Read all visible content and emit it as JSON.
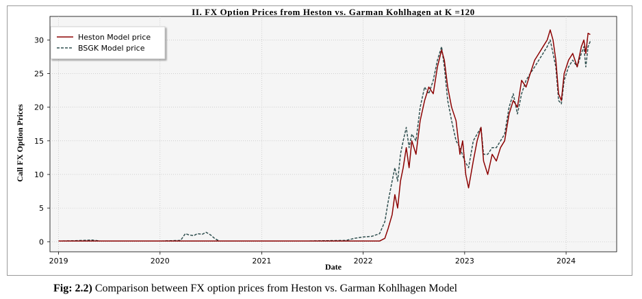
{
  "colors": {
    "heston": "#8b0000",
    "bsgk": "#2f4f4f",
    "plot_background": "#f5f5f5",
    "grid": "#b8b8b8"
  },
  "chart_data": {
    "type": "line",
    "title": "II. FX Option Prices from Heston vs. Garman Kohlhagen at K =120",
    "xlabel": "Date",
    "ylabel": "Call FX Option Prices",
    "xlim": [
      "2018-12-01",
      "2024-07-01"
    ],
    "ylim": [
      -1.5,
      33.5
    ],
    "x_ticks": [
      "2019",
      "2020",
      "2021",
      "2022",
      "2023",
      "2024"
    ],
    "y_ticks": [
      0,
      5,
      10,
      15,
      20,
      25,
      30
    ],
    "grid": true,
    "legend_position": "upper-left",
    "series": [
      {
        "name": "Heston Model price",
        "style": "solid",
        "points": [
          [
            "2019-01-01",
            0.1
          ],
          [
            "2019-06-01",
            0.1
          ],
          [
            "2020-01-01",
            0.1
          ],
          [
            "2020-06-01",
            0.1
          ],
          [
            "2021-01-01",
            0.1
          ],
          [
            "2021-06-01",
            0.1
          ],
          [
            "2022-01-01",
            0.1
          ],
          [
            "2022-03-01",
            0.1
          ],
          [
            "2022-03-20",
            0.5
          ],
          [
            "2022-04-01",
            2
          ],
          [
            "2022-04-15",
            4
          ],
          [
            "2022-04-25",
            7
          ],
          [
            "2022-05-05",
            5
          ],
          [
            "2022-05-15",
            9
          ],
          [
            "2022-05-25",
            11
          ],
          [
            "2022-06-05",
            14
          ],
          [
            "2022-06-15",
            11
          ],
          [
            "2022-06-25",
            15
          ],
          [
            "2022-07-10",
            13
          ],
          [
            "2022-07-25",
            18
          ],
          [
            "2022-08-10",
            21
          ],
          [
            "2022-08-25",
            23
          ],
          [
            "2022-09-10",
            22
          ],
          [
            "2022-09-25",
            26
          ],
          [
            "2022-10-10",
            28.5
          ],
          [
            "2022-10-20",
            27
          ],
          [
            "2022-11-01",
            23
          ],
          [
            "2022-11-15",
            20
          ],
          [
            "2022-12-01",
            18
          ],
          [
            "2022-12-15",
            13
          ],
          [
            "2022-12-25",
            15
          ],
          [
            "2023-01-05",
            10
          ],
          [
            "2023-01-15",
            8
          ],
          [
            "2023-02-01",
            12
          ],
          [
            "2023-02-15",
            15
          ],
          [
            "2023-03-01",
            17
          ],
          [
            "2023-03-10",
            12
          ],
          [
            "2023-03-25",
            10
          ],
          [
            "2023-04-10",
            13
          ],
          [
            "2023-04-25",
            12
          ],
          [
            "2023-05-10",
            14
          ],
          [
            "2023-05-25",
            15
          ],
          [
            "2023-06-10",
            19
          ],
          [
            "2023-06-25",
            21
          ],
          [
            "2023-07-10",
            20
          ],
          [
            "2023-07-25",
            24
          ],
          [
            "2023-08-10",
            23
          ],
          [
            "2023-08-25",
            25
          ],
          [
            "2023-09-10",
            27
          ],
          [
            "2023-09-25",
            28
          ],
          [
            "2023-10-10",
            29
          ],
          [
            "2023-10-25",
            30
          ],
          [
            "2023-11-05",
            31.5
          ],
          [
            "2023-11-15",
            30
          ],
          [
            "2023-11-25",
            27
          ],
          [
            "2023-12-05",
            22
          ],
          [
            "2023-12-15",
            21
          ],
          [
            "2023-12-25",
            25
          ],
          [
            "2024-01-10",
            27
          ],
          [
            "2024-01-25",
            28
          ],
          [
            "2024-02-10",
            26
          ],
          [
            "2024-02-25",
            29
          ],
          [
            "2024-03-05",
            30
          ],
          [
            "2024-03-12",
            28
          ],
          [
            "2024-03-20",
            31
          ],
          [
            "2024-03-28",
            30.8
          ]
        ]
      },
      {
        "name": "BSGK Model price",
        "style": "dashed",
        "points": [
          [
            "2019-01-01",
            0.1
          ],
          [
            "2019-03-01",
            0.15
          ],
          [
            "2019-05-01",
            0.25
          ],
          [
            "2019-06-01",
            0.1
          ],
          [
            "2019-09-01",
            0.1
          ],
          [
            "2020-01-01",
            0.1
          ],
          [
            "2020-03-15",
            0.2
          ],
          [
            "2020-04-01",
            1.2
          ],
          [
            "2020-04-15",
            1.0
          ],
          [
            "2020-05-01",
            0.9
          ],
          [
            "2020-05-15",
            1.2
          ],
          [
            "2020-06-01",
            1.1
          ],
          [
            "2020-06-15",
            1.4
          ],
          [
            "2020-07-01",
            1.0
          ],
          [
            "2020-07-15",
            0.5
          ],
          [
            "2020-08-01",
            0.1
          ],
          [
            "2021-01-01",
            0.1
          ],
          [
            "2021-06-01",
            0.1
          ],
          [
            "2021-11-01",
            0.2
          ],
          [
            "2021-12-01",
            0.5
          ],
          [
            "2022-01-01",
            0.7
          ],
          [
            "2022-02-01",
            0.8
          ],
          [
            "2022-03-01",
            1.2
          ],
          [
            "2022-03-20",
            3
          ],
          [
            "2022-04-01",
            6
          ],
          [
            "2022-04-15",
            9
          ],
          [
            "2022-04-25",
            11
          ],
          [
            "2022-05-05",
            9
          ],
          [
            "2022-05-15",
            13
          ],
          [
            "2022-05-25",
            15
          ],
          [
            "2022-06-05",
            17
          ],
          [
            "2022-06-15",
            14
          ],
          [
            "2022-06-25",
            16
          ],
          [
            "2022-07-10",
            15
          ],
          [
            "2022-07-25",
            20
          ],
          [
            "2022-08-10",
            23
          ],
          [
            "2022-08-25",
            22
          ],
          [
            "2022-09-10",
            24
          ],
          [
            "2022-09-25",
            27
          ],
          [
            "2022-10-10",
            29
          ],
          [
            "2022-10-20",
            26
          ],
          [
            "2022-11-01",
            21
          ],
          [
            "2022-11-15",
            18
          ],
          [
            "2022-12-01",
            15
          ],
          [
            "2022-12-15",
            14
          ],
          [
            "2023-01-01",
            12
          ],
          [
            "2023-01-15",
            11
          ],
          [
            "2023-02-01",
            15
          ],
          [
            "2023-02-15",
            16
          ],
          [
            "2023-03-01",
            17
          ],
          [
            "2023-03-10",
            13
          ],
          [
            "2023-03-25",
            13
          ],
          [
            "2023-04-10",
            14
          ],
          [
            "2023-04-25",
            14
          ],
          [
            "2023-05-10",
            15
          ],
          [
            "2023-05-25",
            16
          ],
          [
            "2023-06-10",
            20
          ],
          [
            "2023-06-25",
            22
          ],
          [
            "2023-07-10",
            19
          ],
          [
            "2023-07-25",
            22
          ],
          [
            "2023-08-10",
            24
          ],
          [
            "2023-08-25",
            25
          ],
          [
            "2023-09-10",
            26
          ],
          [
            "2023-09-25",
            27
          ],
          [
            "2023-10-10",
            28
          ],
          [
            "2023-10-25",
            29
          ],
          [
            "2023-11-05",
            30
          ],
          [
            "2023-11-15",
            28
          ],
          [
            "2023-11-25",
            26
          ],
          [
            "2023-12-05",
            21
          ],
          [
            "2023-12-15",
            20.5
          ],
          [
            "2023-12-25",
            24
          ],
          [
            "2024-01-10",
            26
          ],
          [
            "2024-01-25",
            27
          ],
          [
            "2024-02-10",
            26
          ],
          [
            "2024-02-25",
            28
          ],
          [
            "2024-03-05",
            29
          ],
          [
            "2024-03-12",
            26
          ],
          [
            "2024-03-20",
            29
          ],
          [
            "2024-03-28",
            29.8
          ]
        ]
      }
    ]
  },
  "caption": {
    "label": "Fig: 2.2)",
    "text": " Comparison between FX option prices from Heston vs. Garman Kohlhagen Model"
  }
}
